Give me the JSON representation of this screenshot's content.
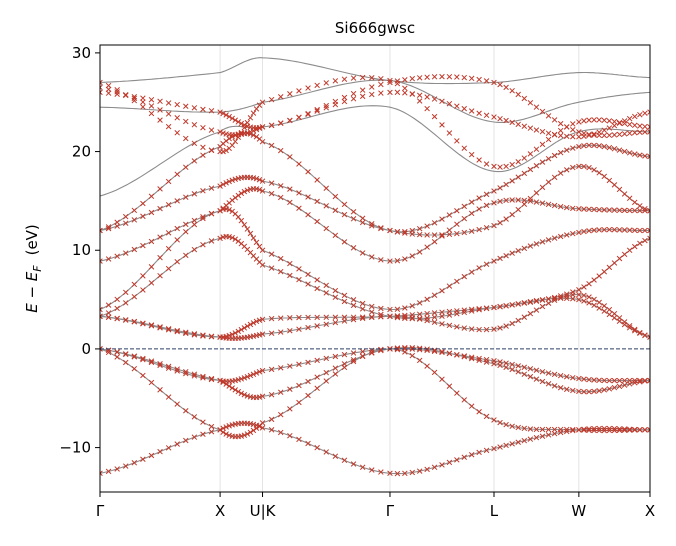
{
  "chart_data": {
    "type": "line",
    "title": "Si666gwsc",
    "ylabel": "E − E_F  (eV)",
    "ylabel_parts": {
      "e": "E",
      "minus": " − ",
      "ef": "E",
      "sub": "F",
      "unit": "(eV)"
    },
    "ylim": [
      -14.5,
      30.8
    ],
    "yticks": [
      -10,
      0,
      10,
      20,
      30
    ],
    "ytick_labels": [
      "−10",
      "0",
      "10",
      "20",
      "30"
    ],
    "x_range": [
      0,
      3.966
    ],
    "kpoints": [
      {
        "label": "Γ",
        "x": 0.0
      },
      {
        "label": "X",
        "x": 0.866
      },
      {
        "label": "U|K",
        "x": 1.172
      },
      {
        "label": "Γ",
        "x": 2.091
      },
      {
        "label": "L",
        "x": 2.841
      },
      {
        "label": "W",
        "x": 3.453
      },
      {
        "label": "X",
        "x": 3.966
      }
    ],
    "fermi_level": 0,
    "grid": "vertical lines at high-symmetry points",
    "colors": {
      "dft": "#8c8c8c",
      "wannier": "#c0392b",
      "fermi": "#2c3e66",
      "grid": "#dddddd"
    },
    "series": [
      {
        "style": "gray line",
        "bands": [
          [
            [
              0,
              -12.6
            ],
            [
              0.866,
              -8.2
            ],
            [
              1.172,
              -8.0
            ],
            [
              2.091,
              -12.6
            ],
            [
              2.841,
              -10.1
            ],
            [
              3.453,
              -8.2
            ],
            [
              3.966,
              -8.2
            ]
          ],
          [
            [
              0,
              0
            ],
            [
              0.866,
              -3.2
            ],
            [
              1.172,
              -4.8
            ],
            [
              2.091,
              0
            ],
            [
              2.841,
              -1.5
            ],
            [
              3.453,
              -4.3
            ],
            [
              3.966,
              -3.2
            ]
          ],
          [
            [
              0,
              0
            ],
            [
              0.866,
              -3.2
            ],
            [
              1.172,
              -2.2
            ],
            [
              2.091,
              0
            ],
            [
              2.841,
              -1.2
            ],
            [
              3.453,
              -3.0
            ],
            [
              3.966,
              -3.2
            ]
          ],
          [
            [
              0,
              0
            ],
            [
              0.866,
              -8.2
            ],
            [
              1.172,
              -7.5
            ],
            [
              2.091,
              0
            ],
            [
              2.841,
              -7.2
            ],
            [
              3.453,
              -8.2
            ],
            [
              3.966,
              -8.2
            ]
          ],
          [
            [
              0,
              3.3
            ],
            [
              0.866,
              1.2
            ],
            [
              1.172,
              1.5
            ],
            [
              2.091,
              3.3
            ],
            [
              2.841,
              2.0
            ],
            [
              3.453,
              5.5
            ],
            [
              3.966,
              1.2
            ]
          ],
          [
            [
              0,
              3.3
            ],
            [
              0.866,
              1.2
            ],
            [
              1.172,
              3.0
            ],
            [
              2.091,
              3.3
            ],
            [
              2.841,
              4.2
            ],
            [
              3.453,
              5.0
            ],
            [
              3.966,
              1.2
            ]
          ],
          [
            [
              0,
              3.3
            ],
            [
              0.866,
              11.2
            ],
            [
              1.172,
              8.5
            ],
            [
              2.091,
              3.3
            ],
            [
              2.841,
              4.2
            ],
            [
              3.453,
              6.0
            ],
            [
              3.966,
              11.2
            ]
          ],
          [
            [
              0,
              4.0
            ],
            [
              0.866,
              14.0
            ],
            [
              1.172,
              10.0
            ],
            [
              2.091,
              4.0
            ],
            [
              2.841,
              8.9
            ],
            [
              3.453,
              11.8
            ],
            [
              3.966,
              12.0
            ]
          ],
          [
            [
              0,
              8.9
            ],
            [
              0.866,
              14.0
            ],
            [
              1.172,
              16.0
            ],
            [
              2.091,
              8.9
            ],
            [
              2.841,
              14.8
            ],
            [
              3.453,
              14.2
            ],
            [
              3.966,
              14.0
            ]
          ],
          [
            [
              0,
              12.0
            ],
            [
              0.866,
              16.5
            ],
            [
              1.172,
              17.0
            ],
            [
              2.091,
              12.0
            ],
            [
              2.841,
              12.5
            ],
            [
              3.453,
              18.5
            ],
            [
              3.966,
              14.0
            ]
          ],
          [
            [
              0,
              12.0
            ],
            [
              0.866,
              20.5
            ],
            [
              1.172,
              21.0
            ],
            [
              2.091,
              12.0
            ],
            [
              2.841,
              16.0
            ],
            [
              3.453,
              20.5
            ],
            [
              3.966,
              19.5
            ]
          ],
          [
            [
              0,
              15.5
            ],
            [
              0.866,
              22.0
            ],
            [
              1.172,
              22.5
            ],
            [
              2.091,
              24.5
            ],
            [
              2.841,
              18.0
            ],
            [
              3.453,
              22.0
            ],
            [
              3.966,
              22.0
            ]
          ],
          [
            [
              0,
              24.5
            ],
            [
              0.866,
              24.0
            ],
            [
              1.172,
              25.0
            ],
            [
              2.091,
              27.2
            ],
            [
              2.841,
              23.0
            ],
            [
              3.453,
              25.0
            ],
            [
              3.966,
              26.0
            ]
          ],
          [
            [
              0,
              27.0
            ],
            [
              0.866,
              28.0
            ],
            [
              1.172,
              29.5
            ],
            [
              2.091,
              27.2
            ],
            [
              2.841,
              27.0
            ],
            [
              3.453,
              28.0
            ],
            [
              3.966,
              27.5
            ]
          ]
        ]
      },
      {
        "style": "red x markers",
        "bands": [
          [
            [
              0,
              -12.6
            ],
            [
              0.866,
              -8.2
            ],
            [
              1.172,
              -8.0
            ],
            [
              2.091,
              -12.6
            ],
            [
              2.841,
              -10.1
            ],
            [
              3.453,
              -8.2
            ],
            [
              3.966,
              -8.2
            ]
          ],
          [
            [
              0,
              0
            ],
            [
              0.866,
              -3.2
            ],
            [
              1.172,
              -4.8
            ],
            [
              2.091,
              0
            ],
            [
              2.841,
              -1.5
            ],
            [
              3.453,
              -4.3
            ],
            [
              3.966,
              -3.2
            ]
          ],
          [
            [
              0,
              0
            ],
            [
              0.866,
              -3.2
            ],
            [
              1.172,
              -2.2
            ],
            [
              2.091,
              0
            ],
            [
              2.841,
              -1.2
            ],
            [
              3.453,
              -3.0
            ],
            [
              3.966,
              -3.2
            ]
          ],
          [
            [
              0,
              0
            ],
            [
              0.866,
              -8.2
            ],
            [
              1.172,
              -7.5
            ],
            [
              2.091,
              0
            ],
            [
              2.841,
              -7.2
            ],
            [
              3.453,
              -8.2
            ],
            [
              3.966,
              -8.2
            ]
          ],
          [
            [
              0,
              3.3
            ],
            [
              0.866,
              1.2
            ],
            [
              1.172,
              1.5
            ],
            [
              2.091,
              3.3
            ],
            [
              2.841,
              2.0
            ],
            [
              3.453,
              5.5
            ],
            [
              3.966,
              1.2
            ]
          ],
          [
            [
              0,
              3.3
            ],
            [
              0.866,
              1.2
            ],
            [
              1.172,
              3.0
            ],
            [
              2.091,
              3.3
            ],
            [
              2.841,
              4.2
            ],
            [
              3.453,
              5.0
            ],
            [
              3.966,
              1.2
            ]
          ],
          [
            [
              0,
              3.3
            ],
            [
              0.866,
              11.2
            ],
            [
              1.172,
              8.5
            ],
            [
              2.091,
              3.3
            ],
            [
              2.841,
              4.2
            ],
            [
              3.453,
              6.0
            ],
            [
              3.966,
              11.2
            ]
          ],
          [
            [
              0,
              4.0
            ],
            [
              0.866,
              14.0
            ],
            [
              1.172,
              10.0
            ],
            [
              2.091,
              4.0
            ],
            [
              2.841,
              8.9
            ],
            [
              3.453,
              11.8
            ],
            [
              3.966,
              12.0
            ]
          ],
          [
            [
              0,
              8.9
            ],
            [
              0.866,
              14.0
            ],
            [
              1.172,
              16.0
            ],
            [
              2.091,
              8.9
            ],
            [
              2.841,
              14.8
            ],
            [
              3.453,
              14.2
            ],
            [
              3.966,
              14.0
            ]
          ],
          [
            [
              0,
              12.0
            ],
            [
              0.866,
              16.5
            ],
            [
              1.172,
              17.0
            ],
            [
              2.091,
              12.0
            ],
            [
              2.841,
              12.5
            ],
            [
              3.453,
              18.5
            ],
            [
              3.966,
              14.0
            ]
          ],
          [
            [
              0,
              12.0
            ],
            [
              0.866,
              20.5
            ],
            [
              1.172,
              21.0
            ],
            [
              2.091,
              12.0
            ],
            [
              2.841,
              16.0
            ],
            [
              3.453,
              20.5
            ],
            [
              3.966,
              19.5
            ]
          ],
          [
            [
              0,
              26.0
            ],
            [
              0.866,
              24.0
            ],
            [
              1.172,
              22.5
            ],
            [
              2.091,
              27.0
            ],
            [
              2.841,
              27.0
            ],
            [
              3.453,
              22.0
            ],
            [
              3.966,
              22.0
            ]
          ],
          [
            [
              0,
              26.5
            ],
            [
              0.866,
              22.0
            ],
            [
              1.172,
              22.5
            ],
            [
              2.091,
              26.0
            ],
            [
              2.841,
              23.5
            ],
            [
              3.453,
              21.5
            ],
            [
              3.966,
              24.0
            ]
          ],
          [
            [
              0,
              27.0
            ],
            [
              0.866,
              20.0
            ],
            [
              1.172,
              25.0
            ],
            [
              2.091,
              27.2
            ],
            [
              2.841,
              18.5
            ],
            [
              3.453,
              23.0
            ],
            [
              3.966,
              22.5
            ]
          ]
        ]
      }
    ]
  }
}
